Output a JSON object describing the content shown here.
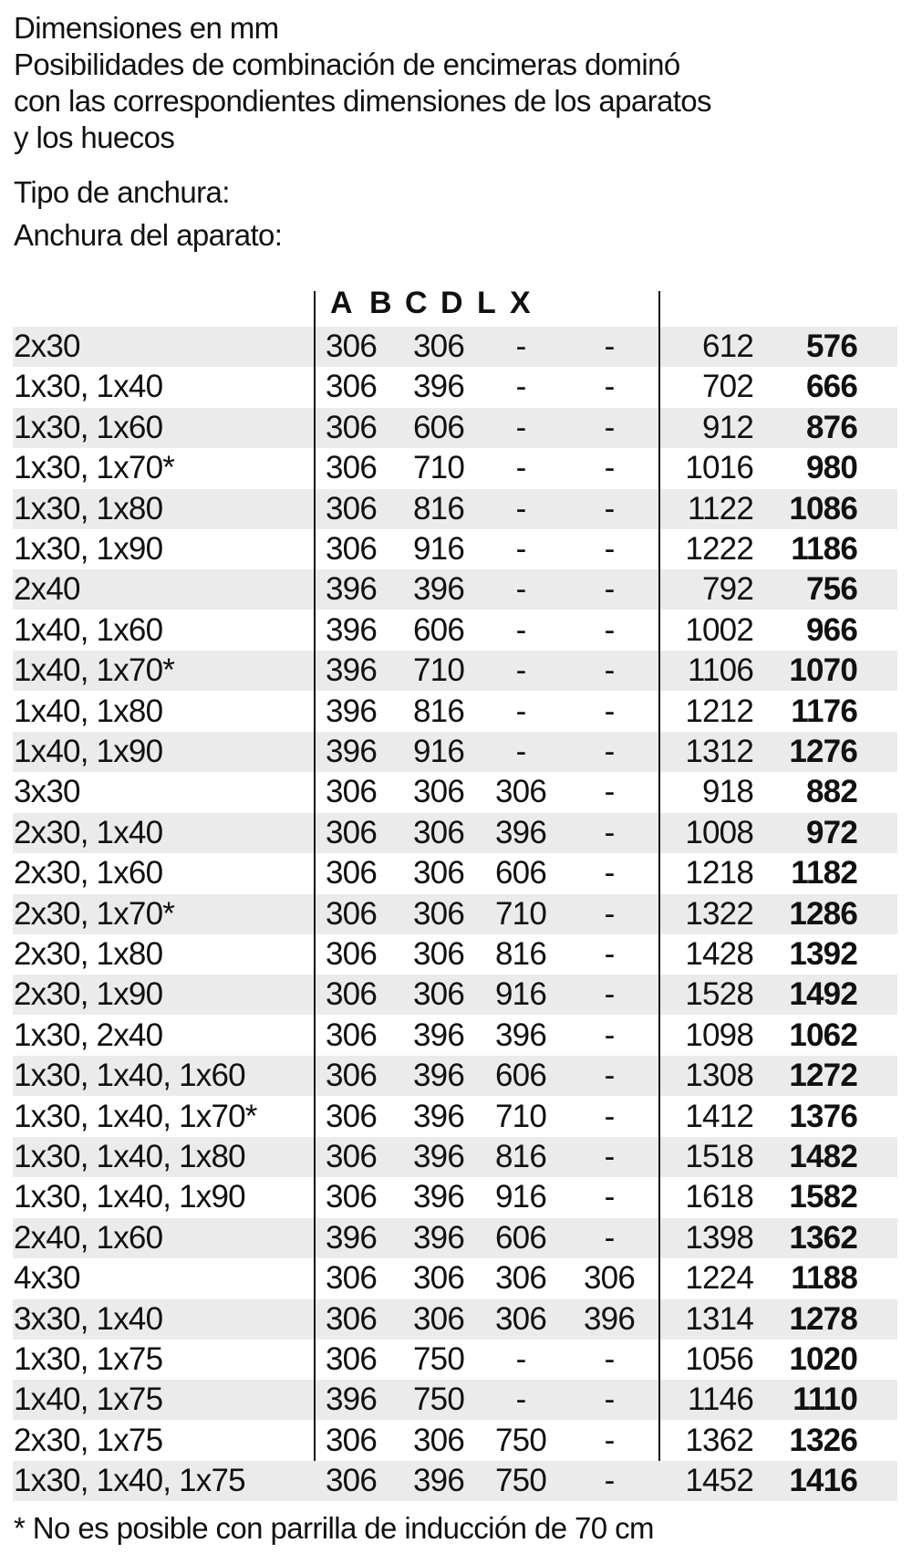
{
  "heading": {
    "lines": [
      "Dimensiones en mm",
      "Posibilidades de combinación de encimeras dominó",
      "con las correspondientes dimensiones de los aparatos",
      "y los huecos"
    ],
    "width_type_label": "Tipo de anchura:",
    "appliance_width_label": "Anchura del aparato:"
  },
  "table": {
    "column_headers": [
      "A",
      "B",
      "C",
      "D",
      "L",
      "X"
    ],
    "rows": [
      [
        "2x30",
        "306",
        "306",
        "-",
        "-",
        "612",
        "576"
      ],
      [
        "1x30, 1x40",
        "306",
        "396",
        "-",
        "-",
        "702",
        "666"
      ],
      [
        "1x30, 1x60",
        "306",
        "606",
        "-",
        "-",
        "912",
        "876"
      ],
      [
        "1x30, 1x70*",
        "306",
        "710",
        "-",
        "-",
        "1016",
        "980"
      ],
      [
        "1x30, 1x80",
        "306",
        "816",
        "-",
        "-",
        "1122",
        "1086"
      ],
      [
        "1x30, 1x90",
        "306",
        "916",
        "-",
        "-",
        "1222",
        "1186"
      ],
      [
        "2x40",
        "396",
        "396",
        "-",
        "-",
        "792",
        "756"
      ],
      [
        "1x40, 1x60",
        "396",
        "606",
        "-",
        "-",
        "1002",
        "966"
      ],
      [
        "1x40, 1x70*",
        "396",
        "710",
        "-",
        "-",
        "1106",
        "1070"
      ],
      [
        "1x40, 1x80",
        "396",
        "816",
        "-",
        "-",
        "1212",
        "1176"
      ],
      [
        "1x40, 1x90",
        "396",
        "916",
        "-",
        "-",
        "1312",
        "1276"
      ],
      [
        "3x30",
        "306",
        "306",
        "306",
        "-",
        "918",
        "882"
      ],
      [
        "2x30, 1x40",
        "306",
        "306",
        "396",
        "-",
        "1008",
        "972"
      ],
      [
        "2x30, 1x60",
        "306",
        "306",
        "606",
        "-",
        "1218",
        "1182"
      ],
      [
        "2x30, 1x70*",
        "306",
        "306",
        "710",
        "-",
        "1322",
        "1286"
      ],
      [
        "2x30, 1x80",
        "306",
        "306",
        "816",
        "-",
        "1428",
        "1392"
      ],
      [
        "2x30, 1x90",
        "306",
        "306",
        "916",
        "-",
        "1528",
        "1492"
      ],
      [
        "1x30, 2x40",
        "306",
        "396",
        "396",
        "-",
        "1098",
        "1062"
      ],
      [
        "1x30, 1x40, 1x60",
        "306",
        "396",
        "606",
        "-",
        "1308",
        "1272"
      ],
      [
        "1x30, 1x40, 1x70*",
        "306",
        "396",
        "710",
        "-",
        "1412",
        "1376"
      ],
      [
        "1x30, 1x40, 1x80",
        "306",
        "396",
        "816",
        "-",
        "1518",
        "1482"
      ],
      [
        "1x30, 1x40, 1x90",
        "306",
        "396",
        "916",
        "-",
        "1618",
        "1582"
      ],
      [
        "2x40, 1x60",
        "396",
        "396",
        "606",
        "-",
        "1398",
        "1362"
      ],
      [
        "4x30",
        "306",
        "306",
        "306",
        "306",
        "1224",
        "1188"
      ],
      [
        "3x30, 1x40",
        "306",
        "306",
        "306",
        "396",
        "1314",
        "1278"
      ],
      [
        "1x30, 1x75",
        "306",
        "750",
        "-",
        "-",
        "1056",
        "1020"
      ],
      [
        "1x40, 1x75",
        "396",
        "750",
        "-",
        "-",
        "1146",
        "1110"
      ],
      [
        "2x30, 1x75",
        "306",
        "306",
        "750",
        "-",
        "1362",
        "1326"
      ],
      [
        "1x30, 1x40, 1x75",
        "306",
        "396",
        "750",
        "-",
        "1452",
        "1416"
      ]
    ]
  },
  "footnote": "* No es posible con parrilla de inducción de 70 cm",
  "colors": {
    "stripe": "#ebebeb",
    "text": "#111111"
  }
}
